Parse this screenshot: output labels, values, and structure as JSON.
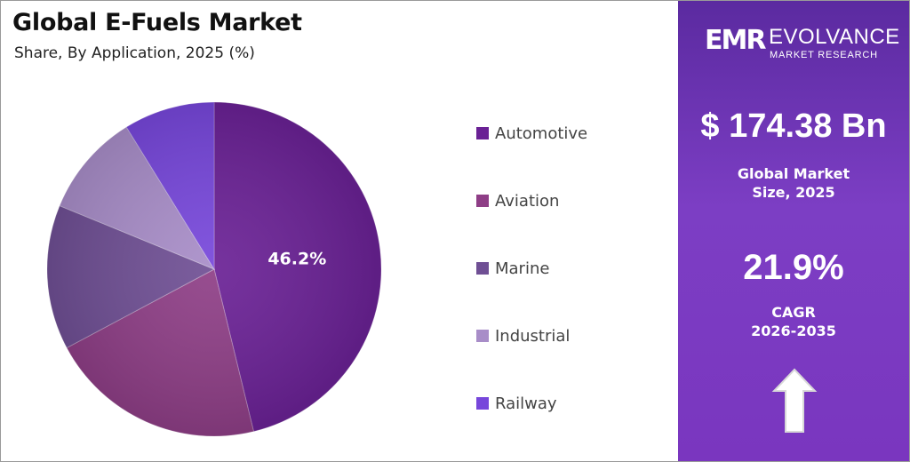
{
  "header": {
    "title": "Global E-Fuels Market",
    "subtitle": "Share, By Application, 2025 (%)"
  },
  "chart_data": {
    "type": "pie",
    "categories": [
      "Automotive",
      "Aviation",
      "Marine",
      "Industrial",
      "Railway"
    ],
    "values": [
      46.2,
      21.0,
      14.0,
      10.0,
      8.8
    ],
    "colors": [
      "#6a2195",
      "#8e3e86",
      "#6f4f94",
      "#a88dc8",
      "#7747db"
    ],
    "data_labels": [
      "46.2%",
      "",
      "",
      "",
      ""
    ],
    "start_angle_deg": 0,
    "direction": "clockwise",
    "legend_position": "right"
  },
  "panel": {
    "brand_logo": "EMR",
    "brand_name": "EVOLVANCE",
    "brand_sub": "MARKET RESEARCH",
    "market_size_value": "$ 174.38 Bn",
    "market_size_label_1": "Global Market",
    "market_size_label_2": "Size, 2025",
    "cagr_value": "21.9%",
    "cagr_label_1": "CAGR",
    "cagr_label_2": "2026-2035",
    "arrow_icon": "up-arrow-icon",
    "background_top": "#5b2aa0",
    "background_bottom": "#7a36bf"
  }
}
